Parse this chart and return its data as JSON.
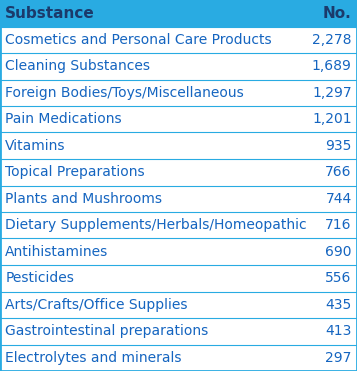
{
  "header": [
    "Substance",
    "No."
  ],
  "rows": [
    [
      "Cosmetics and Personal Care Products",
      "2,278"
    ],
    [
      "Cleaning Substances",
      "1,689"
    ],
    [
      "Foreign Bodies/Toys/Miscellaneous",
      "1,297"
    ],
    [
      "Pain Medications",
      "1,201"
    ],
    [
      "Vitamins",
      "935"
    ],
    [
      "Topical Preparations",
      "766"
    ],
    [
      "Plants and Mushrooms",
      "744"
    ],
    [
      "Dietary Supplements/Herbals/Homeopathic",
      "716"
    ],
    [
      "Antihistamines",
      "690"
    ],
    [
      "Pesticides",
      "556"
    ],
    [
      "Arts/Crafts/Office Supplies",
      "435"
    ],
    [
      "Gastrointestinal preparations",
      "413"
    ],
    [
      "Electrolytes and minerals",
      "297"
    ]
  ],
  "header_bg_color": "#29ABE2",
  "header_text_color": "#1B3A6B",
  "row_text_color": "#1565C0",
  "table_border_color": "#29ABE2",
  "background_color": "#FFFFFF",
  "header_fontsize": 11,
  "row_fontsize": 10,
  "fig_width": 3.57,
  "fig_height": 3.71
}
